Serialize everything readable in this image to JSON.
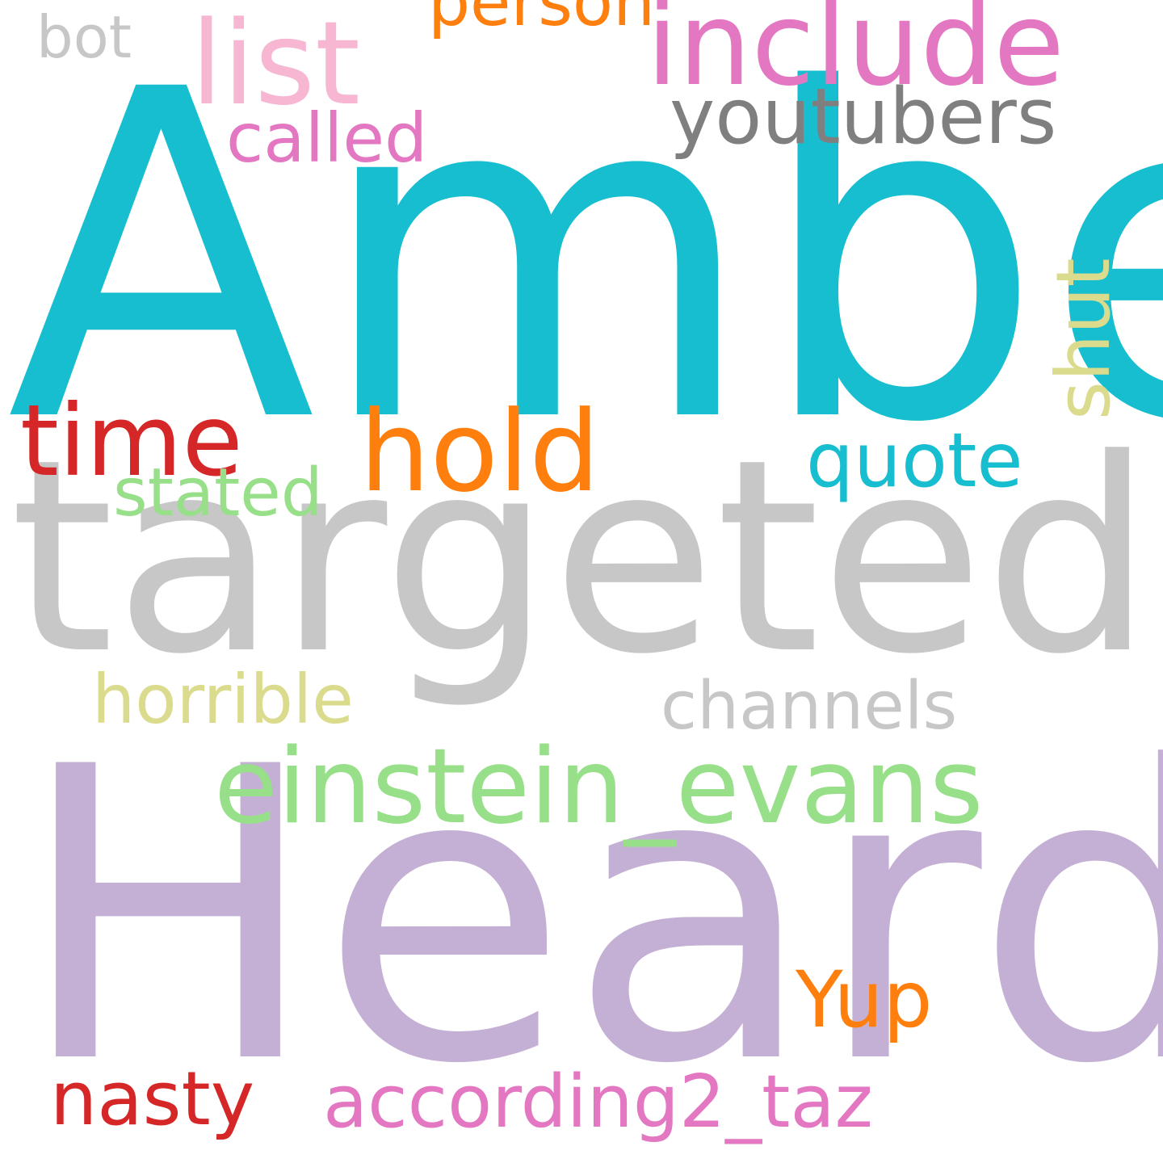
{
  "words": [
    {
      "text": "Amber",
      "color": "#17becf"
    },
    {
      "text": "Heard",
      "color": "#c5b0d5"
    },
    {
      "text": "targeted",
      "color": "#c7c7c7"
    },
    {
      "text": "include",
      "color": "#e377c2"
    },
    {
      "text": "list",
      "color": "#f7b6d2"
    },
    {
      "text": "person",
      "color": "#ff7f0e"
    },
    {
      "text": "bot",
      "color": "#c7c7c7"
    },
    {
      "text": "youtubers",
      "color": "#7f7f7f"
    },
    {
      "text": "called",
      "color": "#e377c2"
    },
    {
      "text": "shut",
      "color": "#dbdb8d"
    },
    {
      "text": "time",
      "color": "#d62728"
    },
    {
      "text": "hold",
      "color": "#ff7f0e"
    },
    {
      "text": "quote",
      "color": "#17becf"
    },
    {
      "text": "stated",
      "color": "#98df8a"
    },
    {
      "text": "horrible",
      "color": "#dbdb8d"
    },
    {
      "text": "channels",
      "color": "#c7c7c7"
    },
    {
      "text": "einstein_evans",
      "color": "#98df8a"
    },
    {
      "text": "Yup",
      "color": "#ff7f0e"
    },
    {
      "text": "nasty",
      "color": "#d62728"
    },
    {
      "text": "according2_taz",
      "color": "#e377c2"
    }
  ]
}
